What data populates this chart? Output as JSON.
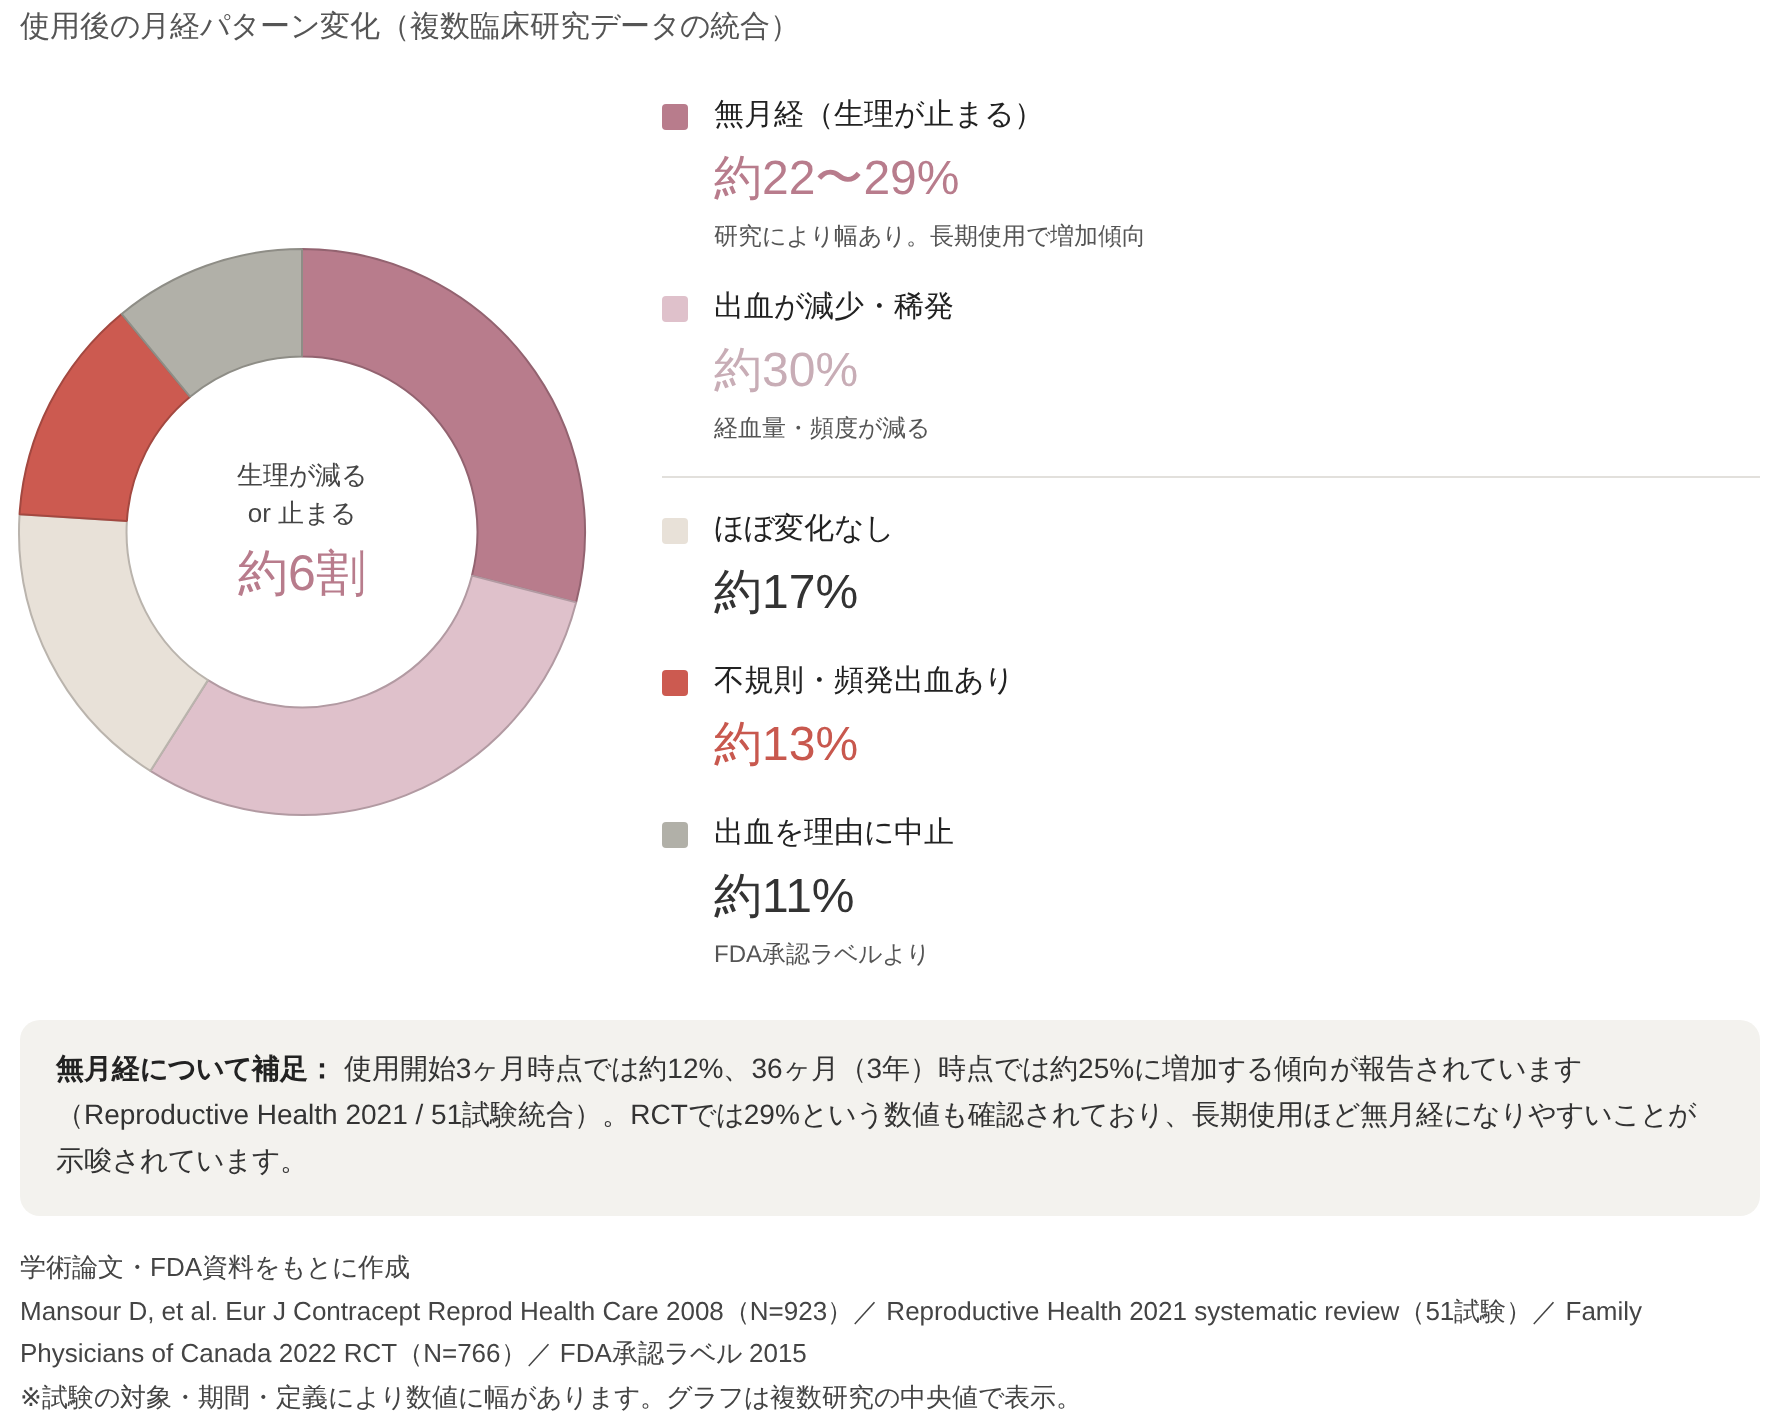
{
  "chart_data": {
    "type": "donut",
    "title": "使用後の月経パターン変化（複数臨床研究データの統合）",
    "categories": [
      "無月経（生理が止まる）",
      "出血が減少・稀発",
      "ほぼ変化なし",
      "不規則・頻発出血あり",
      "出血を理由に中止"
    ],
    "values": [
      29,
      30,
      17,
      13,
      11
    ],
    "value_labels": [
      "約22〜29%",
      "約30%",
      "約17%",
      "約13%",
      "約11%"
    ],
    "colors": [
      "#b87c8c",
      "#dfc1cb",
      "#e8e1d8",
      "#cc5a50",
      "#b1b0a8"
    ],
    "legend": "right",
    "annotations": [
      "生理が減る",
      "or 止まる",
      "約6割",
      {
        "text": "研究により幅あり。長期使用で増加傾向",
        "x": "無月経（生理が止まる）"
      },
      {
        "text": "経血量・頻度が減る",
        "x": "出血が減少・稀発"
      },
      {
        "text": "FDA承認ラベルより",
        "x": "出血を理由に中止"
      },
      "無月経について補足：",
      "使用開始3ヶ月時点では約12%、36ヶ月（3年）時点では約25%に増加する傾向が報告されています（Reproductive Health 2021 / 51試験統合）。RCTでは29%という数値も確認されており、長期使用ほど無月経になりやすいことが示唆されています。",
      "学術論文・FDA資料をもとに作成",
      "Mansour D, et al. Eur J Contracept Reprod Health Care 2008（N=923）／ Reproductive Health 2021 systematic review（51試験）／ Family Physicians of Canada 2022 RCT（N=766）／ FDA承認ラベル 2015",
      "※試験の対象・期間・定義により数値に幅があります。グラフは複数研究の中央値で表示。"
    ]
  }
}
